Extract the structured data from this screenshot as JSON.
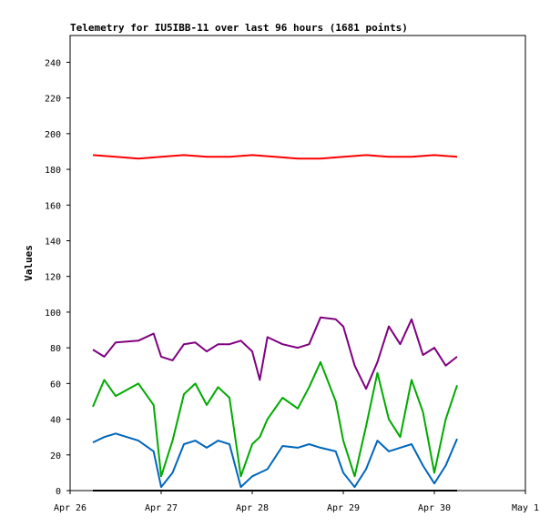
{
  "chart_data": {
    "type": "line",
    "title": "Telemetry for IU5IBB-11 over last 96 hours (1681 points)",
    "ylabel": "Values",
    "xlabel": "",
    "ylim": [
      0,
      255
    ],
    "xlim": [
      "Apr 26 00:00",
      "May 1 00:00"
    ],
    "grid": false,
    "legend": "none",
    "yticks": [
      0,
      20,
      40,
      60,
      80,
      100,
      120,
      140,
      160,
      180,
      200,
      220,
      240
    ],
    "xticks": [
      {
        "at": "Apr 26 00:00",
        "label": "Apr 26"
      },
      {
        "at": "Apr 27 00:00",
        "label": "Apr 27"
      },
      {
        "at": "Apr 28 00:00",
        "label": "Apr 28"
      },
      {
        "at": "Apr 29 00:00",
        "label": "Apr 29"
      },
      {
        "at": "Apr 30 00:00",
        "label": "Apr 30"
      },
      {
        "at": "May 1 00:00",
        "label": "May 1"
      }
    ],
    "series": [
      {
        "color": "#ff0000",
        "x": [
          "Apr 26 06:00",
          "Apr 26 12:00",
          "Apr 26 18:00",
          "Apr 27 00:00",
          "Apr 27 06:00",
          "Apr 27 12:00",
          "Apr 27 18:00",
          "Apr 28 00:00",
          "Apr 28 06:00",
          "Apr 28 12:00",
          "Apr 28 18:00",
          "Apr 29 00:00",
          "Apr 29 06:00",
          "Apr 29 12:00",
          "Apr 29 18:00",
          "Apr 30 00:00",
          "Apr 30 06:00"
        ],
        "y": [
          188,
          187,
          186,
          187,
          188,
          187,
          187,
          188,
          187,
          186,
          186,
          187,
          188,
          187,
          187,
          188,
          187
        ]
      },
      {
        "color": "#800080",
        "x": [
          "Apr 26 06:00",
          "Apr 26 09:00",
          "Apr 26 12:00",
          "Apr 26 18:00",
          "Apr 26 22:00",
          "Apr 27 00:00",
          "Apr 27 03:00",
          "Apr 27 06:00",
          "Apr 27 09:00",
          "Apr 27 12:00",
          "Apr 27 15:00",
          "Apr 27 18:00",
          "Apr 27 21:00",
          "Apr 28 00:00",
          "Apr 28 02:00",
          "Apr 28 04:00",
          "Apr 28 08:00",
          "Apr 28 12:00",
          "Apr 28 15:00",
          "Apr 28 18:00",
          "Apr 28 22:00",
          "Apr 29 00:00",
          "Apr 29 03:00",
          "Apr 29 06:00",
          "Apr 29 09:00",
          "Apr 29 12:00",
          "Apr 29 15:00",
          "Apr 29 18:00",
          "Apr 29 21:00",
          "Apr 30 00:00",
          "Apr 30 03:00",
          "Apr 30 06:00"
        ],
        "y": [
          79,
          75,
          83,
          84,
          88,
          75,
          73,
          82,
          83,
          78,
          82,
          82,
          84,
          78,
          62,
          86,
          82,
          80,
          82,
          97,
          96,
          92,
          70,
          57,
          72,
          92,
          82,
          96,
          76,
          80,
          70,
          75
        ]
      },
      {
        "color": "#00aa00",
        "x": [
          "Apr 26 06:00",
          "Apr 26 09:00",
          "Apr 26 12:00",
          "Apr 26 18:00",
          "Apr 26 22:00",
          "Apr 27 00:00",
          "Apr 27 03:00",
          "Apr 27 06:00",
          "Apr 27 09:00",
          "Apr 27 12:00",
          "Apr 27 15:00",
          "Apr 27 18:00",
          "Apr 27 21:00",
          "Apr 28 00:00",
          "Apr 28 02:00",
          "Apr 28 04:00",
          "Apr 28 08:00",
          "Apr 28 12:00",
          "Apr 28 15:00",
          "Apr 28 18:00",
          "Apr 28 22:00",
          "Apr 29 00:00",
          "Apr 29 03:00",
          "Apr 29 06:00",
          "Apr 29 09:00",
          "Apr 29 12:00",
          "Apr 29 15:00",
          "Apr 29 18:00",
          "Apr 29 21:00",
          "Apr 30 00:00",
          "Apr 30 03:00",
          "Apr 30 06:00"
        ],
        "y": [
          47,
          62,
          53,
          60,
          48,
          8,
          28,
          54,
          60,
          48,
          58,
          52,
          8,
          26,
          30,
          40,
          52,
          46,
          58,
          72,
          50,
          28,
          8,
          36,
          66,
          40,
          30,
          62,
          44,
          10,
          40,
          59
        ]
      },
      {
        "color": "#0066bb",
        "x": [
          "Apr 26 06:00",
          "Apr 26 09:00",
          "Apr 26 12:00",
          "Apr 26 18:00",
          "Apr 26 22:00",
          "Apr 27 00:00",
          "Apr 27 03:00",
          "Apr 27 06:00",
          "Apr 27 09:00",
          "Apr 27 12:00",
          "Apr 27 15:00",
          "Apr 27 18:00",
          "Apr 27 21:00",
          "Apr 28 00:00",
          "Apr 28 02:00",
          "Apr 28 04:00",
          "Apr 28 08:00",
          "Apr 28 12:00",
          "Apr 28 15:00",
          "Apr 28 18:00",
          "Apr 28 22:00",
          "Apr 29 00:00",
          "Apr 29 03:00",
          "Apr 29 06:00",
          "Apr 29 09:00",
          "Apr 29 12:00",
          "Apr 29 15:00",
          "Apr 29 18:00",
          "Apr 29 21:00",
          "Apr 30 00:00",
          "Apr 30 03:00",
          "Apr 30 06:00"
        ],
        "y": [
          27,
          30,
          32,
          28,
          22,
          2,
          10,
          26,
          28,
          24,
          28,
          26,
          2,
          8,
          10,
          12,
          25,
          24,
          26,
          24,
          22,
          10,
          2,
          12,
          28,
          22,
          24,
          26,
          14,
          4,
          14,
          29
        ]
      },
      {
        "color": "#000000",
        "x": [
          "Apr 26 06:00",
          "Apr 30 06:00"
        ],
        "y": [
          0,
          0
        ]
      }
    ]
  }
}
